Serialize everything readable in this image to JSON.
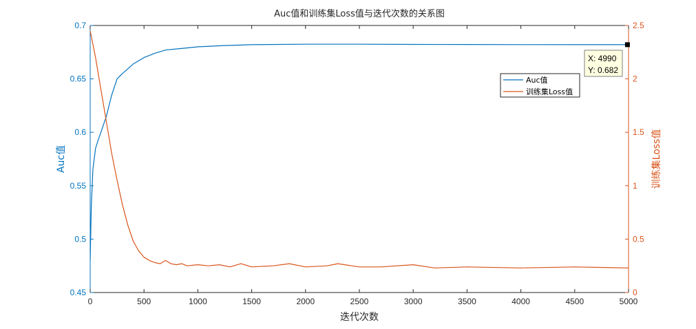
{
  "chart_data": {
    "type": "line",
    "title": "Auc值和训练集Loss值与迭代次数的关系图",
    "xlabel": "迭代次数",
    "ylabel_left": "Auc值",
    "ylabel_right": "训练集Loss值",
    "xlim": [
      0,
      5000
    ],
    "ylim_left": [
      0.45,
      0.7
    ],
    "ylim_right": [
      0,
      2.5
    ],
    "x_ticks": [
      "0",
      "500",
      "1000",
      "1500",
      "2000",
      "2500",
      "3000",
      "3500",
      "4000",
      "4500",
      "5000"
    ],
    "y_ticks_left": [
      "0.45",
      "0.5",
      "0.55",
      "0.6",
      "0.65",
      "0.7"
    ],
    "y_ticks_right": [
      "0",
      "0.5",
      "1",
      "1.5",
      "2",
      "2.5"
    ],
    "grid": false,
    "legend_position": "top-right",
    "colors": {
      "auc": "#0072BD",
      "loss": "#D95319",
      "axis": "#262626"
    },
    "series": [
      {
        "name": "Auc值",
        "axis": "left",
        "x": [
          0,
          10,
          25,
          50,
          75,
          100,
          150,
          200,
          250,
          300,
          400,
          500,
          600,
          700,
          800,
          900,
          1000,
          1200,
          1500,
          2000,
          2500,
          3000,
          3500,
          4000,
          4500,
          4990,
          5000
        ],
        "y": [
          0.48,
          0.53,
          0.565,
          0.585,
          0.593,
          0.6,
          0.615,
          0.635,
          0.65,
          0.655,
          0.664,
          0.67,
          0.674,
          0.677,
          0.678,
          0.679,
          0.68,
          0.681,
          0.682,
          0.6825,
          0.6825,
          0.6823,
          0.6822,
          0.6821,
          0.682,
          0.682,
          0.682
        ]
      },
      {
        "name": "训练集Loss值",
        "axis": "right",
        "x": [
          0,
          50,
          100,
          150,
          200,
          250,
          300,
          350,
          400,
          450,
          500,
          550,
          600,
          650,
          700,
          750,
          800,
          850,
          900,
          1000,
          1100,
          1200,
          1300,
          1400,
          1500,
          1700,
          1850,
          2000,
          2200,
          2300,
          2500,
          2700,
          3000,
          3200,
          3500,
          4000,
          4500,
          5000
        ],
        "y": [
          2.45,
          2.2,
          1.9,
          1.6,
          1.3,
          1.05,
          0.82,
          0.63,
          0.48,
          0.39,
          0.33,
          0.3,
          0.28,
          0.27,
          0.3,
          0.27,
          0.26,
          0.27,
          0.25,
          0.26,
          0.25,
          0.26,
          0.24,
          0.27,
          0.24,
          0.25,
          0.27,
          0.24,
          0.25,
          0.27,
          0.24,
          0.24,
          0.26,
          0.23,
          0.24,
          0.23,
          0.24,
          0.23
        ]
      }
    ],
    "datatip": {
      "x_label": "X: 4990",
      "y_label": "Y: 0.682",
      "x": 4990,
      "y": 0.682
    }
  }
}
